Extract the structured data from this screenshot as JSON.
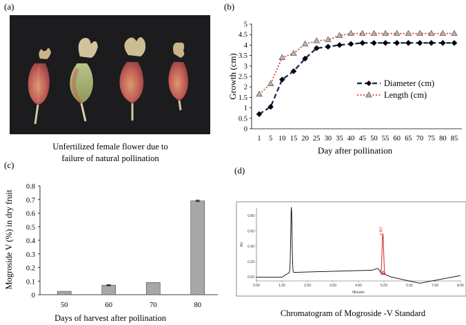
{
  "panel_labels": {
    "a": "(a)",
    "b": "(b)",
    "c": "(c)",
    "d": "(d)"
  },
  "photo": {
    "caption_line1": "Unfertilized  female flower due to",
    "caption_line2": "failure  of natural pollination"
  },
  "chart_data": [
    {
      "type": "line",
      "title": "",
      "xlabel": "Day after pollination",
      "ylabel": "Growth (cm)",
      "x": [
        1,
        5,
        10,
        15,
        20,
        25,
        30,
        35,
        40,
        45,
        50,
        55,
        60,
        65,
        70,
        75,
        80,
        85
      ],
      "y_ticks": [
        "0",
        "0.5",
        "1",
        "1.5",
        "2",
        "2.5",
        "3",
        "3.5",
        "4",
        "4.5",
        "5"
      ],
      "ylim": [
        0,
        5
      ],
      "grid": false,
      "legend_position": "right",
      "series": [
        {
          "name": "Diameter (cm)",
          "color": "#1f2d5c",
          "marker": "diamond",
          "style": "dashed",
          "values": [
            0.7,
            1.05,
            2.35,
            2.75,
            3.35,
            3.85,
            3.92,
            4.0,
            4.05,
            4.1,
            4.1,
            4.1,
            4.1,
            4.1,
            4.1,
            4.1,
            4.1,
            4.1
          ]
        },
        {
          "name": "Length (cm)",
          "color": "#e03a30",
          "marker": "triangle",
          "style": "dotted",
          "values": [
            1.65,
            2.15,
            3.4,
            3.6,
            4.05,
            4.2,
            4.25,
            4.45,
            4.55,
            4.55,
            4.55,
            4.55,
            4.55,
            4.55,
            4.55,
            4.55,
            4.55,
            4.55
          ]
        }
      ]
    },
    {
      "type": "bar",
      "title": "",
      "xlabel": "Days of harvest after pollination",
      "ylabel": "Mogroside V (%) in dry fruit",
      "categories": [
        "50",
        "60",
        "70",
        "80"
      ],
      "values": [
        0.025,
        0.07,
        0.09,
        0.69
      ],
      "errors": [
        0.0,
        0.004,
        0.0,
        0.005
      ],
      "y_ticks": [
        "0",
        "0.1",
        "0.2",
        "0.3",
        "0.4",
        "0.5",
        "0.6",
        "0.7",
        "0.8"
      ],
      "ylim": [
        0,
        0.8
      ],
      "grid": false,
      "bar_color": "#a8a8a8"
    },
    {
      "type": "line",
      "title": "Chromatogram of Mogroside -V Standard",
      "xlabel": "Minutes",
      "ylabel": "AU",
      "xlim": [
        0,
        8
      ],
      "ylim": [
        -0.05,
        0.9
      ],
      "x_ticks": [
        "0.00",
        "1.00",
        "2.00",
        "3.00",
        "4.00",
        "5.00",
        "6.00",
        "7.00",
        "8.00"
      ],
      "y_ticks": [
        "0.00",
        "0.20",
        "0.40",
        "0.60",
        "0.80"
      ],
      "peaks": [
        {
          "rt": 1.37,
          "height": 0.85,
          "label": ""
        },
        {
          "rt": 4.957,
          "height": 0.52,
          "label": "4.957"
        }
      ],
      "peak_label_color": "#d42020"
    }
  ]
}
